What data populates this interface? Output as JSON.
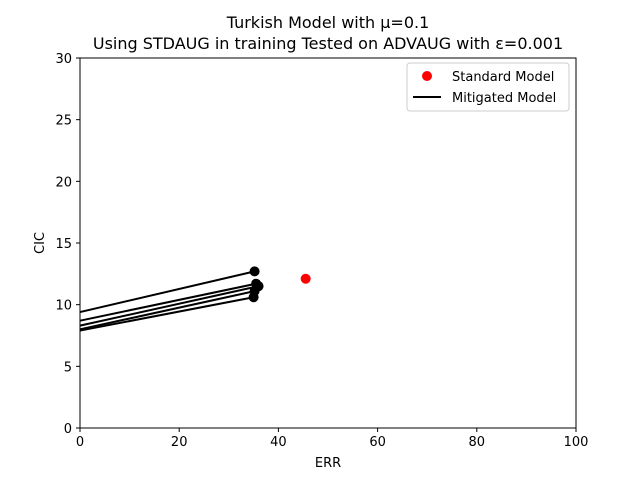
{
  "chart_data": {
    "type": "scatter",
    "title_line1": "Turkish Model with μ=0.1",
    "title_line2": "Using STDAUG in training Tested on ADVAUG with ε=0.001",
    "xlabel": "ERR",
    "ylabel": "CIC",
    "xlim": [
      0,
      100
    ],
    "ylim": [
      0,
      30
    ],
    "xticks": [
      0,
      20,
      40,
      60,
      80,
      100
    ],
    "yticks": [
      0,
      5,
      10,
      15,
      20,
      25,
      30
    ],
    "grid": false,
    "legend_position": "top-right",
    "series": [
      {
        "name": "Standard Model",
        "kind": "points",
        "color": "#ff0000",
        "points": [
          {
            "x": 45.5,
            "y": 12.1
          }
        ]
      },
      {
        "name": "Mitigated Model",
        "kind": "segments",
        "color": "#000000",
        "segments": [
          {
            "x0": 0,
            "y0": 9.4,
            "x1": 35.2,
            "y1": 12.7
          },
          {
            "x0": 0,
            "y0": 8.7,
            "x1": 35.5,
            "y1": 11.7
          },
          {
            "x0": 0,
            "y0": 8.3,
            "x1": 36.0,
            "y1": 11.5
          },
          {
            "x0": 0,
            "y0": 8.0,
            "x1": 35.2,
            "y1": 11.1
          },
          {
            "x0": 0,
            "y0": 7.9,
            "x1": 35.0,
            "y1": 10.6
          }
        ]
      }
    ]
  }
}
